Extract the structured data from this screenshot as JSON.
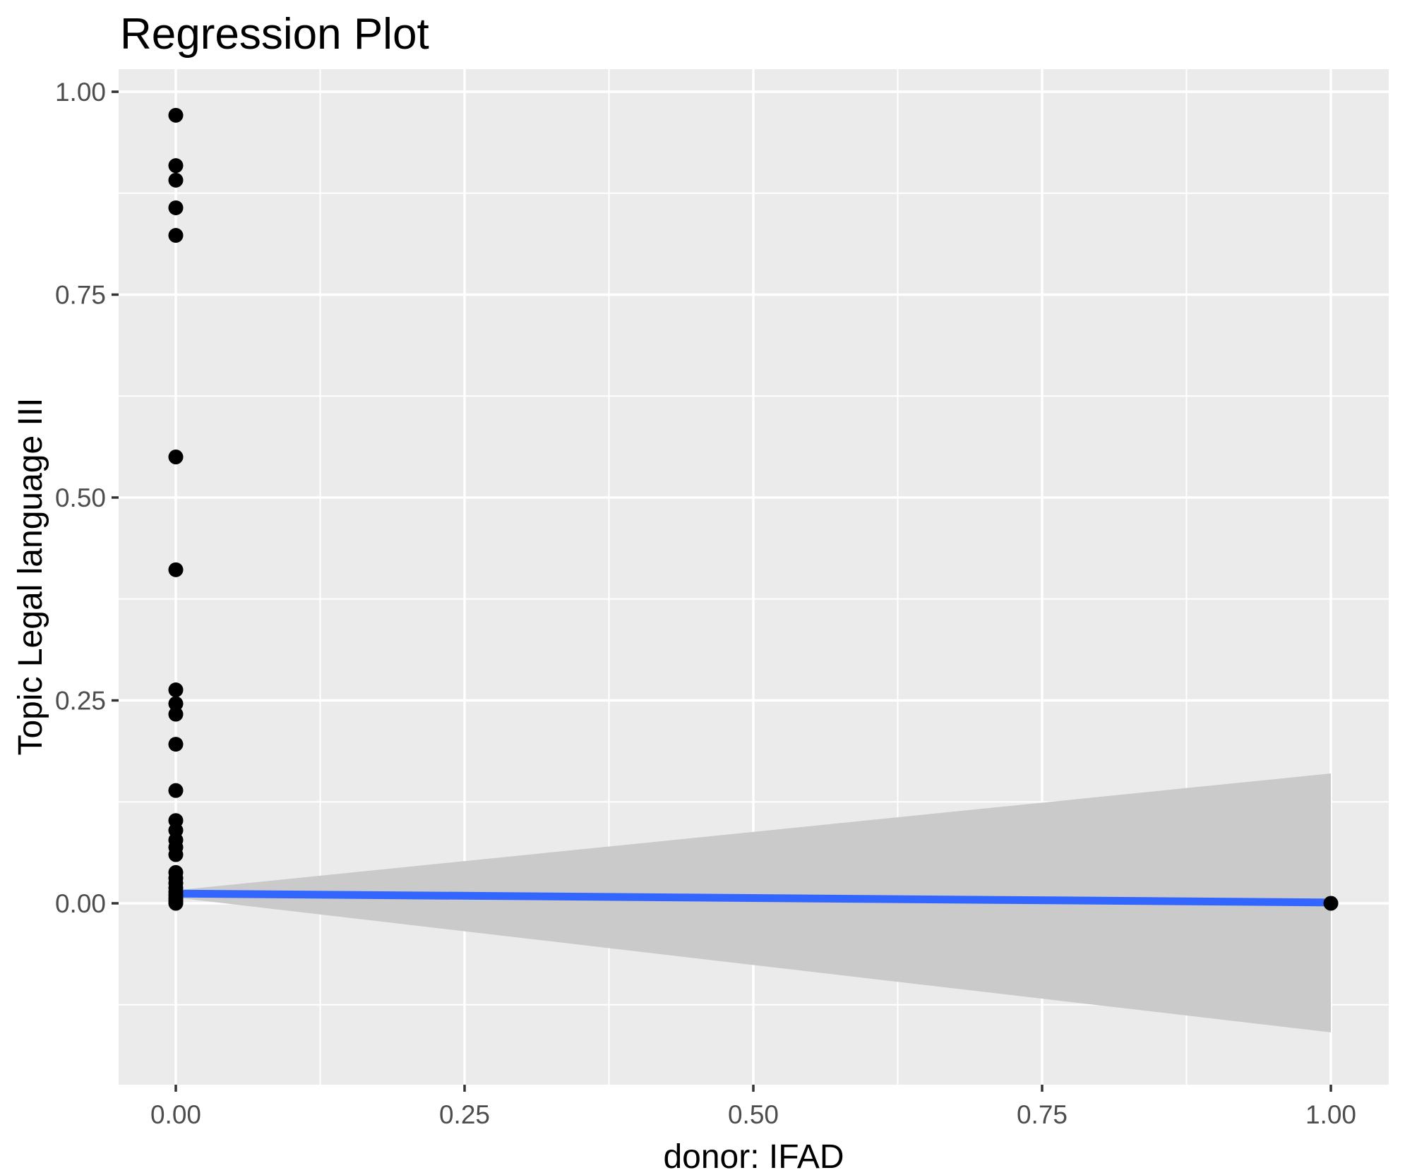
{
  "title": "Regression Plot",
  "x_axis": {
    "title": "donor: IFAD",
    "tick_labels": [
      "0.00",
      "0.25",
      "0.50",
      "0.75",
      "1.00"
    ],
    "tick_values": [
      0,
      0.25,
      0.5,
      0.75,
      1.0
    ],
    "minor_tick_values": [
      0.125,
      0.375,
      0.625,
      0.875
    ]
  },
  "y_axis": {
    "title": "Topic Legal language III",
    "tick_labels": [
      "0.00",
      "0.25",
      "0.50",
      "0.75",
      "1.00"
    ],
    "tick_values": [
      0,
      0.25,
      0.5,
      0.75,
      1.0
    ],
    "minor_tick_values": [
      -0.125,
      0.125,
      0.375,
      0.625,
      0.875
    ]
  },
  "colors": {
    "panel_background": "#EBEBEB",
    "gridline": "#FFFFFF",
    "confidence_band": "#CACACA",
    "regression_line": "#3366FF",
    "point": "#000000",
    "tick_mark": "#333333",
    "tick_label_text": "#4D4D4D",
    "title_text": "#000000",
    "figure_background": "#FFFFFF"
  },
  "chart_data": {
    "type": "scatter",
    "title": "Regression Plot",
    "xlabel": "donor: IFAD",
    "ylabel": "Topic Legal language III",
    "xlim": [
      -0.05,
      1.05
    ],
    "ylim": [
      -0.224,
      1.03
    ],
    "grid": "major and minor white gridlines on gray panel",
    "legend_position": "none",
    "points": [
      {
        "x": 0,
        "y": 0.971
      },
      {
        "x": 0,
        "y": 0.909
      },
      {
        "x": 0,
        "y": 0.891
      },
      {
        "x": 0,
        "y": 0.857
      },
      {
        "x": 0,
        "y": 0.823
      },
      {
        "x": 0,
        "y": 0.55
      },
      {
        "x": 0,
        "y": 0.411
      },
      {
        "x": 0,
        "y": 0.263
      },
      {
        "x": 0,
        "y": 0.246
      },
      {
        "x": 0,
        "y": 0.233
      },
      {
        "x": 0,
        "y": 0.196
      },
      {
        "x": 0,
        "y": 0.139
      },
      {
        "x": 0,
        "y": 0.102
      },
      {
        "x": 0,
        "y": 0.09
      },
      {
        "x": 0,
        "y": 0.078
      },
      {
        "x": 0,
        "y": 0.069
      },
      {
        "x": 0,
        "y": 0.06
      },
      {
        "x": 0,
        "y": 0.038
      },
      {
        "x": 0,
        "y": 0.031
      },
      {
        "x": 0,
        "y": 0.025
      },
      {
        "x": 0,
        "y": 0.019
      },
      {
        "x": 0,
        "y": 0.014
      },
      {
        "x": 0,
        "y": 0.01
      },
      {
        "x": 0,
        "y": 0.006
      },
      {
        "x": 0,
        "y": 0.003
      },
      {
        "x": 0,
        "y": 0.0
      },
      {
        "x": 1,
        "y": 0.0
      }
    ],
    "regression_line": {
      "x": [
        0,
        1
      ],
      "y": [
        0.012,
        0.001
      ]
    },
    "confidence_band": {
      "x": [
        0,
        1
      ],
      "upper": [
        0.016,
        0.16
      ],
      "lower": [
        0.007,
        -0.159
      ]
    }
  }
}
